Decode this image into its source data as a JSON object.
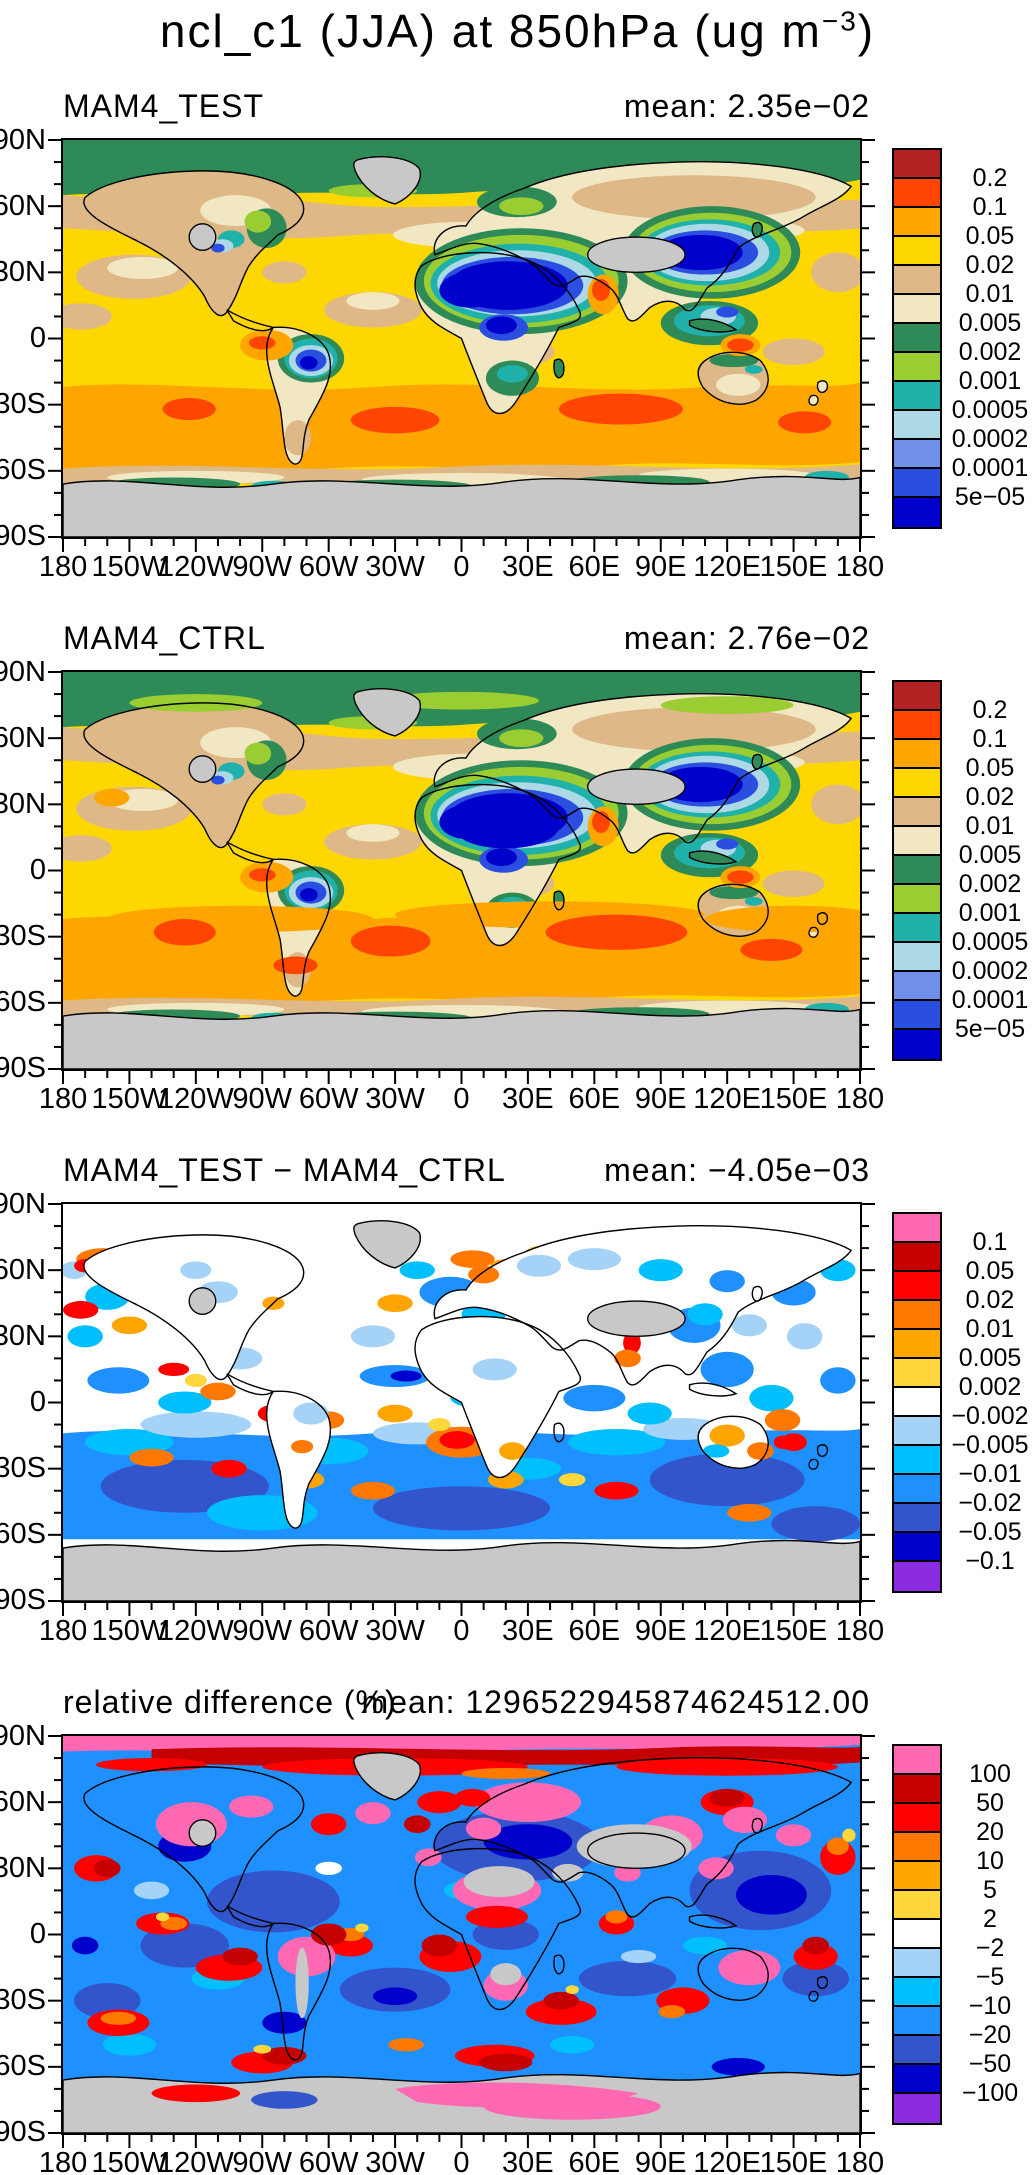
{
  "chart_data": {
    "type": "heatmap",
    "subtype": "filled-contour-world-maps",
    "title_parts": {
      "prefix": "ncl_c1 (JJA) at 850hPa (ug m",
      "superscript": "−3",
      "suffix": ")"
    },
    "x_tick_labels": [
      "180",
      "150W",
      "120W",
      "90W",
      "60W",
      "30W",
      "0",
      "30E",
      "60E",
      "90E",
      "120E",
      "150E",
      "180"
    ],
    "y_tick_labels": [
      "90N",
      "60N",
      "30N",
      "0",
      "30S",
      "60S",
      "90S"
    ],
    "missing_data_color": "#C8C8C8",
    "panels": [
      {
        "title": "MAM4_TEST",
        "mean": "mean: 2.35e−02",
        "colorbar_labels": [
          "0.2",
          "0.1",
          "0.05",
          "0.02",
          "0.01",
          "0.005",
          "0.002",
          "0.001",
          "0.0005",
          "0.0002",
          "0.0001",
          "5e−05"
        ],
        "colorbar_colors": [
          "#B22222",
          "#FF4500",
          "#FFA500",
          "#FFD700",
          "#DEB887",
          "#F2E7C3",
          "#2E8B57",
          "#9ACD32",
          "#20B2AA",
          "#ADD8E6",
          "#6F8FE8",
          "#2A4FE0",
          "#0000CD"
        ]
      },
      {
        "title": "MAM4_CTRL",
        "mean": "mean: 2.76e−02",
        "colorbar_labels": [
          "0.2",
          "0.1",
          "0.05",
          "0.02",
          "0.01",
          "0.005",
          "0.002",
          "0.001",
          "0.0005",
          "0.0002",
          "0.0001",
          "5e−05"
        ],
        "colorbar_colors": [
          "#B22222",
          "#FF4500",
          "#FFA500",
          "#FFD700",
          "#DEB887",
          "#F2E7C3",
          "#2E8B57",
          "#9ACD32",
          "#20B2AA",
          "#ADD8E6",
          "#6F8FE8",
          "#2A4FE0",
          "#0000CD"
        ]
      },
      {
        "title": "MAM4_TEST − MAM4_CTRL",
        "mean": "mean: −4.05e−03",
        "colorbar_labels": [
          "0.1",
          "0.05",
          "0.02",
          "0.01",
          "0.005",
          "0.002",
          "−0.002",
          "−0.005",
          "−0.01",
          "−0.02",
          "−0.05",
          "−0.1"
        ],
        "colorbar_colors": [
          "#FF69B4",
          "#C40000",
          "#FF0000",
          "#FF7800",
          "#FFA500",
          "#FFD73B",
          "#FFFFFF",
          "#A5D2F7",
          "#00BFFF",
          "#1E90FF",
          "#3355CC",
          "#0000CC",
          "#8A2BE2"
        ]
      },
      {
        "title": "relative difference (%)",
        "mean": "mean: 1296522945874624512.00",
        "colorbar_labels": [
          "100",
          "50",
          "20",
          "10",
          "5",
          "2",
          "−2",
          "−5",
          "−10",
          "−20",
          "−50",
          "−100"
        ],
        "colorbar_colors": [
          "#FF69B4",
          "#C40000",
          "#FF0000",
          "#FF7800",
          "#FFA500",
          "#FFD73B",
          "#FFFFFF",
          "#A5D2F7",
          "#00BFFF",
          "#1E90FF",
          "#3355CC",
          "#0000CC",
          "#8A2BE2"
        ]
      }
    ]
  }
}
